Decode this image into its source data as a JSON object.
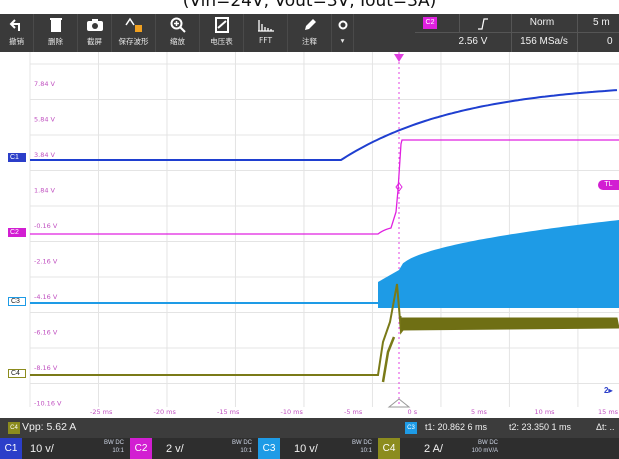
{
  "caption": "(Vin=24V, Vout=3V, Iout=3A)",
  "toolbar": {
    "buttons": [
      {
        "label": "撤销",
        "icon": "undo-icon"
      },
      {
        "label": "删除",
        "icon": "trash-icon"
      },
      {
        "label": "截屏",
        "icon": "camera-icon"
      },
      {
        "label": "保存波形",
        "icon": "save-waveform-icon"
      },
      {
        "label": "缩放",
        "icon": "zoom-icon"
      },
      {
        "label": "电压表",
        "icon": "voltmeter-icon"
      },
      {
        "label": "FFT",
        "icon": "fft-icon"
      },
      {
        "label": "注释",
        "icon": "pencil-icon"
      }
    ]
  },
  "trigger_panel": {
    "source_badge": "C2",
    "slope_icon": "rising-edge-icon",
    "mode": "Norm",
    "level": "2.56 V",
    "sample_rate": "156 MSa/s",
    "timebase_partial": "5 m",
    "offset_partial": "0"
  },
  "scope": {
    "channel_markers": [
      "C1",
      "C2",
      "C3",
      "C4"
    ],
    "trigger_level_marker": "TL",
    "voltage_labels": [
      "7.84 V",
      "5.84 V",
      "3.84 V",
      "1.84 V",
      "-0.16 V",
      "-2.16 V",
      "-4.16 V",
      "-6.16 V",
      "-8.16 V",
      "-10.16 V"
    ],
    "time_labels": [
      "-25 ms",
      "-20 ms",
      "-15 ms",
      "-10 ms",
      "-5 ms",
      "0 s",
      "5 ms",
      "10 ms",
      "15 ms"
    ],
    "right_edge_marker": "2"
  },
  "status": {
    "measurement_channel": "C4",
    "measurement": "Vpp: 5.62 A",
    "cursor_channel": "C3",
    "t1": "t1: 20.862 6 ms",
    "t2": "t2: 23.350 1 ms",
    "dt": "Δt: .."
  },
  "channels": [
    {
      "tag": "C1",
      "scale": "10 v/",
      "coupling": "BW DC",
      "probe": "10:1",
      "color": "#2b3ec9"
    },
    {
      "tag": "C2",
      "scale": "2 v/",
      "coupling": "BW DC",
      "probe": "10:1",
      "color": "#d21ed2"
    },
    {
      "tag": "C3",
      "scale": "10 v/",
      "coupling": "BW DC",
      "probe": "10:1",
      "color": "#1e9be6"
    },
    {
      "tag": "C4",
      "scale": "2 A/",
      "coupling": "BW DC",
      "probe": "100 mV/A",
      "color": "#8c8c1e"
    }
  ]
}
